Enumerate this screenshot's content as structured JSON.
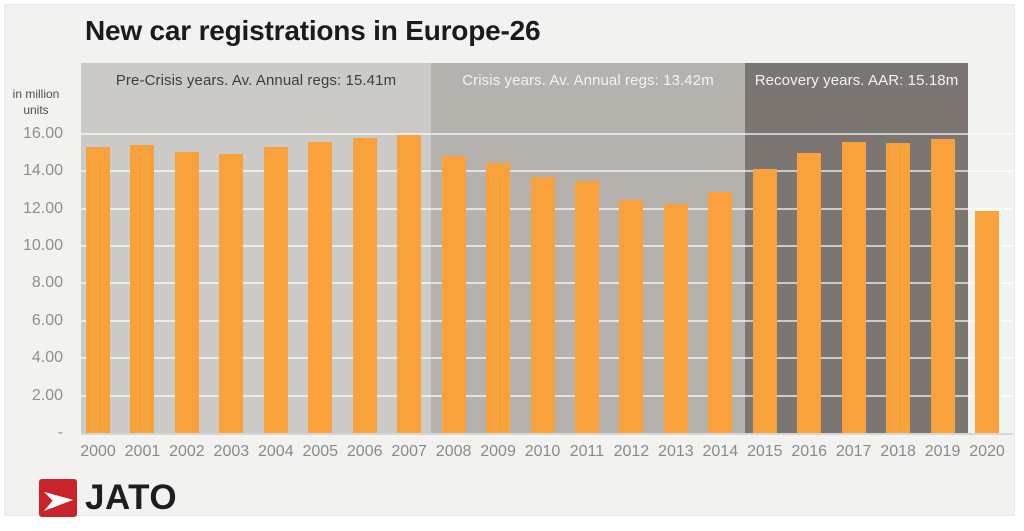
{
  "chart_data": {
    "type": "bar",
    "title": "New car registrations in Europe-26",
    "unit_label": "in million units",
    "categories": [
      "2000",
      "2001",
      "2002",
      "2003",
      "2004",
      "2005",
      "2006",
      "2007",
      "2008",
      "2009",
      "2010",
      "2011",
      "2012",
      "2013",
      "2014",
      "2015",
      "2016",
      "2017",
      "2018",
      "2019",
      "2020"
    ],
    "values": [
      15.32,
      15.42,
      15.02,
      14.93,
      15.32,
      15.57,
      15.77,
      15.95,
      14.8,
      14.42,
      13.7,
      13.45,
      12.45,
      12.25,
      12.87,
      14.1,
      15.0,
      15.57,
      15.52,
      15.71,
      11.85
    ],
    "bar_color": "#F8A13D",
    "ylim": [
      0,
      16
    ],
    "grid": true,
    "legend": "none",
    "yticks": [
      {
        "label": "16.00",
        "value": 16
      },
      {
        "label": "14.00",
        "value": 14
      },
      {
        "label": "12.00",
        "value": 12
      },
      {
        "label": "10.00",
        "value": 10
      },
      {
        "label": "8.00",
        "value": 8
      },
      {
        "label": "6.00",
        "value": 6
      },
      {
        "label": "4.00",
        "value": 4
      },
      {
        "label": "2.00",
        "value": 2
      },
      {
        "label": "-",
        "value": 0
      }
    ],
    "bands": [
      {
        "name": "pre-crisis",
        "label": "Pre-Crisis years. Av. Annual regs: 15.41m",
        "years": [
          "2000",
          "2007"
        ],
        "avg": 15.41,
        "color": "#CBCAC8",
        "text_color": "#3E3E3C"
      },
      {
        "name": "crisis",
        "label": "Crisis years. Av. Annual regs: 13.42m",
        "years": [
          "2008",
          "2014"
        ],
        "avg": 13.42,
        "color": "#B5B2AE",
        "text_color": "#F4F3F1"
      },
      {
        "name": "recovery",
        "label": "Recovery years. AAR: 15.18m",
        "years": [
          "2015",
          "2019"
        ],
        "avg": 15.18,
        "color": "#7B7671",
        "text_color": "#F4F3F1"
      }
    ]
  },
  "footer": {
    "logo_text": "JATO",
    "logo_color": "#C9242B",
    "logo_glyph": "jato-arrow-icon"
  },
  "colors": {
    "page_background": "#F2F2F0",
    "bar": "#F8A13D",
    "title_text": "#1B1B1B",
    "axis_text": "#8F8F8E"
  }
}
